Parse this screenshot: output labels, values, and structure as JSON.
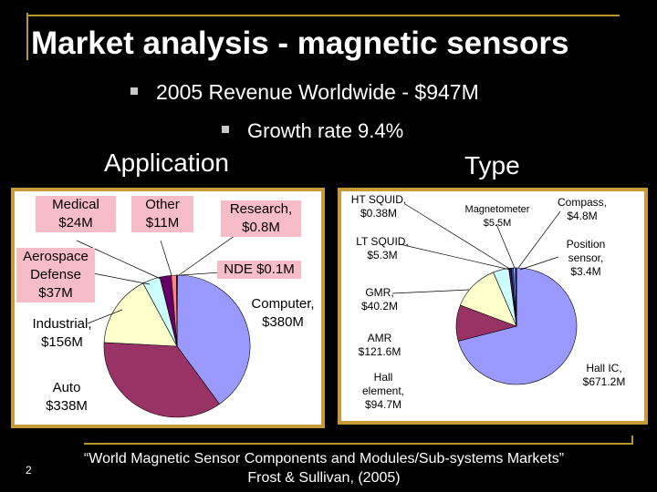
{
  "title": "Market analysis - magnetic sensors",
  "bullets": [
    "2005 Revenue Worldwide - $947M",
    "Growth rate 9.4%"
  ],
  "sections": {
    "application": "Application",
    "type": "Type"
  },
  "chart_data": [
    {
      "type": "pie",
      "title": "Application",
      "slices": [
        {
          "label": "Computer, $380M",
          "value": 380,
          "color": "#9999ff"
        },
        {
          "label": "Auto $338M",
          "value": 338,
          "color": "#993366"
        },
        {
          "label": "Industrial, $156M",
          "value": 156,
          "color": "#ffffcc"
        },
        {
          "label": "Aerospace Defense $37M",
          "value": 37,
          "color": "#ccffff"
        },
        {
          "label": "Medical $24M",
          "value": 24,
          "color": "#660066"
        },
        {
          "label": "Other $11M",
          "value": 11,
          "color": "#ff8080"
        },
        {
          "label": "Research, $0.8M",
          "value": 0.8,
          "color": "#0066cc"
        },
        {
          "label": "NDE $0.1M",
          "value": 0.1,
          "color": "#ccccff"
        }
      ]
    },
    {
      "type": "pie",
      "title": "Type",
      "slices": [
        {
          "label": "Hall IC, $671.2M",
          "value": 671.2,
          "color": "#9999ff"
        },
        {
          "label": "Hall element, $94.7M",
          "value": 94.7,
          "color": "#993366"
        },
        {
          "label": "AMR $121.6M",
          "value": 121.6,
          "color": "#ffffcc"
        },
        {
          "label": "GMR, $40.2M",
          "value": 40.2,
          "color": "#ccffff"
        },
        {
          "label": "LT SQUID, $5.3M",
          "value": 5.3,
          "color": "#660066"
        },
        {
          "label": "HT SQUID, $0.38M",
          "value": 0.38,
          "color": "#ff8080"
        },
        {
          "label": "Magnetometer $5.5M",
          "value": 5.5,
          "color": "#0066cc"
        },
        {
          "label": "Compass, $4.8M",
          "value": 4.8,
          "color": "#ccccff"
        },
        {
          "label": "Position sensor, $3.4M",
          "value": 3.4,
          "color": "#000080"
        }
      ]
    }
  ],
  "labels": {
    "app": {
      "medical": [
        "Medical",
        "$24M"
      ],
      "other": [
        "Other",
        "$11M"
      ],
      "research": [
        "Research,",
        "$0.8M"
      ],
      "aerospace": [
        "Aerospace",
        "Defense",
        "$37M"
      ],
      "nde": "NDE $0.1M",
      "computer": [
        "Computer,",
        "$380M"
      ],
      "industrial": [
        "Industrial,",
        "$156M"
      ],
      "auto": [
        "Auto",
        "$338M"
      ]
    },
    "type": {
      "ht_squid": [
        "HT SQUID,",
        "$0.38M"
      ],
      "magnetometer": [
        "Magnetometer",
        "$5.5M"
      ],
      "compass": [
        "Compass,",
        "$4.8M"
      ],
      "lt_squid": [
        "LT SQUID,",
        "$5.3M"
      ],
      "position": [
        "Position",
        "sensor,",
        "$3.4M"
      ],
      "gmr": [
        "GMR,",
        "$40.2M"
      ],
      "amr": [
        "AMR",
        "$121.6M"
      ],
      "hall_element": [
        "Hall",
        "element,",
        "$94.7M"
      ],
      "hall_ic": [
        "Hall IC,",
        "$671.2M"
      ]
    }
  },
  "citation": [
    "“World Magnetic Sensor Components and Modules/Sub-systems Markets”",
    "Frost & Sullivan, (2005)"
  ],
  "page_number": "2"
}
